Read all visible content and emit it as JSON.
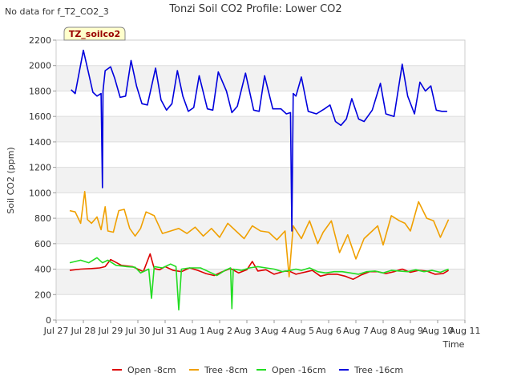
{
  "header_note": "No data for f_T2_CO2_3",
  "chart_data": {
    "type": "line",
    "title": "Tonzi Soil CO2 Profile: Lower CO2",
    "xlabel": "Time",
    "ylabel": "Soil CO2 (ppm)",
    "badge": "TZ_soilco2",
    "ylim": [
      0,
      2200
    ],
    "yticks": [
      0,
      200,
      400,
      600,
      800,
      1000,
      1200,
      1400,
      1600,
      1800,
      2000,
      2200
    ],
    "xlim": [
      0,
      15
    ],
    "xticks": [
      {
        "v": 0,
        "label": "Jul 27"
      },
      {
        "v": 1,
        "label": "Jul 28"
      },
      {
        "v": 2,
        "label": "Jul 29"
      },
      {
        "v": 3,
        "label": "Jul 30"
      },
      {
        "v": 4,
        "label": "Jul 31"
      },
      {
        "v": 5,
        "label": "Aug 1"
      },
      {
        "v": 6,
        "label": "Aug 2"
      },
      {
        "v": 7,
        "label": "Aug 3"
      },
      {
        "v": 8,
        "label": "Aug 4"
      },
      {
        "v": 9,
        "label": "Aug 5"
      },
      {
        "v": 10,
        "label": "Aug 6"
      },
      {
        "v": 11,
        "label": "Aug 7"
      },
      {
        "v": 12,
        "label": "Aug 8"
      },
      {
        "v": 13,
        "label": "Aug 9"
      },
      {
        "v": 14,
        "label": "Aug 10"
      },
      {
        "v": 15,
        "label": "Aug 11"
      }
    ],
    "series": [
      {
        "name": "Open -8cm",
        "color": "#dd0000",
        "x": [
          0.5,
          0.9,
          1.3,
          1.6,
          1.8,
          2.0,
          2.4,
          2.8,
          3.0,
          3.2,
          3.45,
          3.6,
          3.8,
          4.0,
          4.3,
          4.6,
          4.9,
          5.2,
          5.5,
          5.8,
          6.1,
          6.4,
          6.7,
          7.0,
          7.2,
          7.4,
          7.7,
          8.0,
          8.4,
          8.6,
          8.8,
          9.1,
          9.4,
          9.7,
          10.0,
          10.3,
          10.6,
          10.9,
          11.2,
          11.5,
          11.8,
          12.1,
          12.4,
          12.7,
          13.0,
          13.3,
          13.6,
          13.9,
          14.2,
          14.4
        ],
        "values": [
          390,
          400,
          405,
          410,
          420,
          475,
          430,
          420,
          400,
          380,
          520,
          405,
          395,
          420,
          390,
          380,
          410,
          390,
          365,
          350,
          380,
          405,
          370,
          395,
          460,
          385,
          395,
          360,
          385,
          380,
          360,
          375,
          390,
          345,
          360,
          360,
          345,
          320,
          355,
          380,
          380,
          365,
          380,
          400,
          375,
          390,
          385,
          360,
          365,
          390
        ]
      },
      {
        "name": "Tree -8cm",
        "color": "#f0a000",
        "x": [
          0.5,
          0.7,
          0.9,
          1.05,
          1.15,
          1.3,
          1.5,
          1.65,
          1.8,
          1.9,
          2.1,
          2.3,
          2.5,
          2.7,
          2.9,
          3.1,
          3.3,
          3.6,
          3.9,
          4.2,
          4.5,
          4.8,
          5.1,
          5.4,
          5.7,
          6.0,
          6.3,
          6.6,
          6.9,
          7.2,
          7.5,
          7.8,
          8.1,
          8.4,
          8.55,
          8.7,
          9.0,
          9.3,
          9.6,
          9.8,
          10.1,
          10.4,
          10.7,
          11.0,
          11.3,
          11.6,
          11.8,
          12.0,
          12.3,
          12.6,
          12.8,
          13.0,
          13.3,
          13.6,
          13.85,
          14.1,
          14.4
        ],
        "values": [
          860,
          850,
          760,
          1010,
          790,
          760,
          810,
          710,
          890,
          700,
          690,
          860,
          870,
          720,
          660,
          720,
          850,
          820,
          680,
          700,
          720,
          680,
          730,
          660,
          720,
          650,
          760,
          700,
          640,
          740,
          700,
          690,
          630,
          700,
          340,
          740,
          640,
          780,
          600,
          690,
          780,
          530,
          670,
          480,
          640,
          700,
          740,
          590,
          820,
          780,
          760,
          700,
          930,
          800,
          780,
          650,
          790
        ]
      },
      {
        "name": "Open -16cm",
        "color": "#22dd22",
        "x": [
          0.5,
          0.9,
          1.2,
          1.5,
          1.7,
          1.9,
          2.2,
          2.6,
          2.9,
          3.1,
          3.4,
          3.5,
          3.6,
          3.9,
          4.2,
          4.4,
          4.5,
          4.6,
          4.9,
          5.3,
          5.6,
          5.9,
          6.2,
          6.4,
          6.45,
          6.5,
          6.8,
          7.1,
          7.4,
          7.7,
          8.0,
          8.3,
          8.6,
          8.8,
          9.0,
          9.3,
          9.6,
          9.9,
          10.2,
          10.5,
          10.8,
          11.1,
          11.4,
          11.7,
          12.0,
          12.3,
          12.6,
          12.9,
          13.2,
          13.5,
          13.8,
          14.1,
          14.4
        ],
        "values": [
          450,
          470,
          450,
          490,
          450,
          470,
          430,
          420,
          415,
          370,
          400,
          170,
          420,
          410,
          440,
          420,
          80,
          400,
          410,
          410,
          380,
          350,
          390,
          410,
          90,
          400,
          390,
          410,
          420,
          410,
          400,
          380,
          390,
          400,
          390,
          410,
          380,
          370,
          380,
          380,
          370,
          360,
          380,
          385,
          370,
          390,
          385,
          380,
          395,
          380,
          390,
          375,
          400
        ]
      },
      {
        "name": "Tree -16cm",
        "color": "#0000dd",
        "x": [
          0.55,
          0.7,
          0.85,
          1.0,
          1.15,
          1.35,
          1.5,
          1.65,
          1.7,
          1.72,
          1.8,
          2.0,
          2.15,
          2.35,
          2.55,
          2.75,
          2.95,
          3.15,
          3.35,
          3.65,
          3.85,
          4.05,
          4.25,
          4.45,
          4.65,
          4.85,
          5.05,
          5.25,
          5.55,
          5.75,
          5.95,
          6.25,
          6.45,
          6.65,
          6.95,
          7.25,
          7.45,
          7.65,
          7.95,
          8.25,
          8.45,
          8.6,
          8.65,
          8.7,
          8.8,
          9.0,
          9.25,
          9.55,
          9.85,
          10.05,
          10.25,
          10.45,
          10.65,
          10.85,
          11.1,
          11.3,
          11.6,
          11.9,
          12.1,
          12.4,
          12.7,
          12.9,
          13.15,
          13.35,
          13.55,
          13.75,
          13.95,
          14.15,
          14.35
        ],
        "values": [
          1810,
          1780,
          1950,
          2120,
          1980,
          1790,
          1760,
          1780,
          1040,
          1800,
          1960,
          1990,
          1900,
          1750,
          1760,
          2040,
          1840,
          1700,
          1690,
          1980,
          1730,
          1650,
          1700,
          1960,
          1760,
          1640,
          1670,
          1920,
          1660,
          1650,
          1950,
          1800,
          1630,
          1680,
          1940,
          1650,
          1640,
          1920,
          1660,
          1660,
          1620,
          1630,
          700,
          1780,
          1760,
          1910,
          1640,
          1620,
          1660,
          1690,
          1560,
          1530,
          1580,
          1740,
          1580,
          1560,
          1650,
          1860,
          1620,
          1600,
          2010,
          1760,
          1620,
          1870,
          1800,
          1840,
          1650,
          1640,
          1640
        ]
      }
    ]
  }
}
